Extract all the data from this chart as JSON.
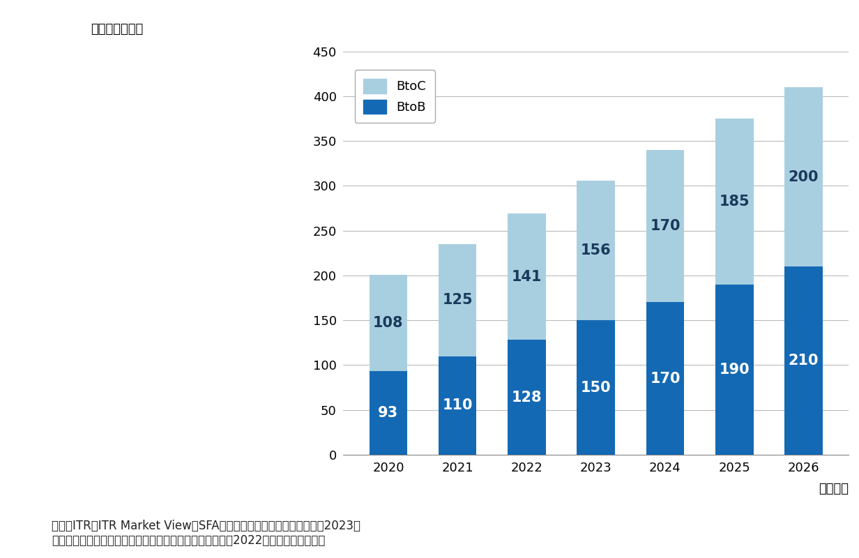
{
  "years": [
    "2020",
    "2021",
    "2022",
    "2023",
    "2024",
    "2025",
    "2026"
  ],
  "btob_values": [
    93,
    110,
    128,
    150,
    170,
    190,
    210
  ],
  "btoc_values": [
    108,
    125,
    141,
    156,
    170,
    185,
    200
  ],
  "btob_color": "#1469b4",
  "btoc_color": "#a8cfe0",
  "unit_label": "（単位：億円）",
  "nendo_label": "（年度）",
  "legend_btoc": "BtoC",
  "legend_btob": "BtoB",
  "source_line1": "出典：ITR『ITR Market View：SFA／統合型マーケティング支援市場2023』",
  "source_line2": "＊ベンダーの売上金額を対象とし、３月期ベースで换算。2022年度以降は予測値。",
  "bg_color": "#ffffff",
  "bar_width": 0.55,
  "label_fontsize": 15,
  "axis_fontsize": 13,
  "unit_fontsize": 13,
  "source_fontsize": 12,
  "ylim": [
    0,
    450
  ],
  "yticks": [
    0,
    50,
    100,
    150,
    200,
    250,
    300,
    350,
    400,
    450
  ]
}
